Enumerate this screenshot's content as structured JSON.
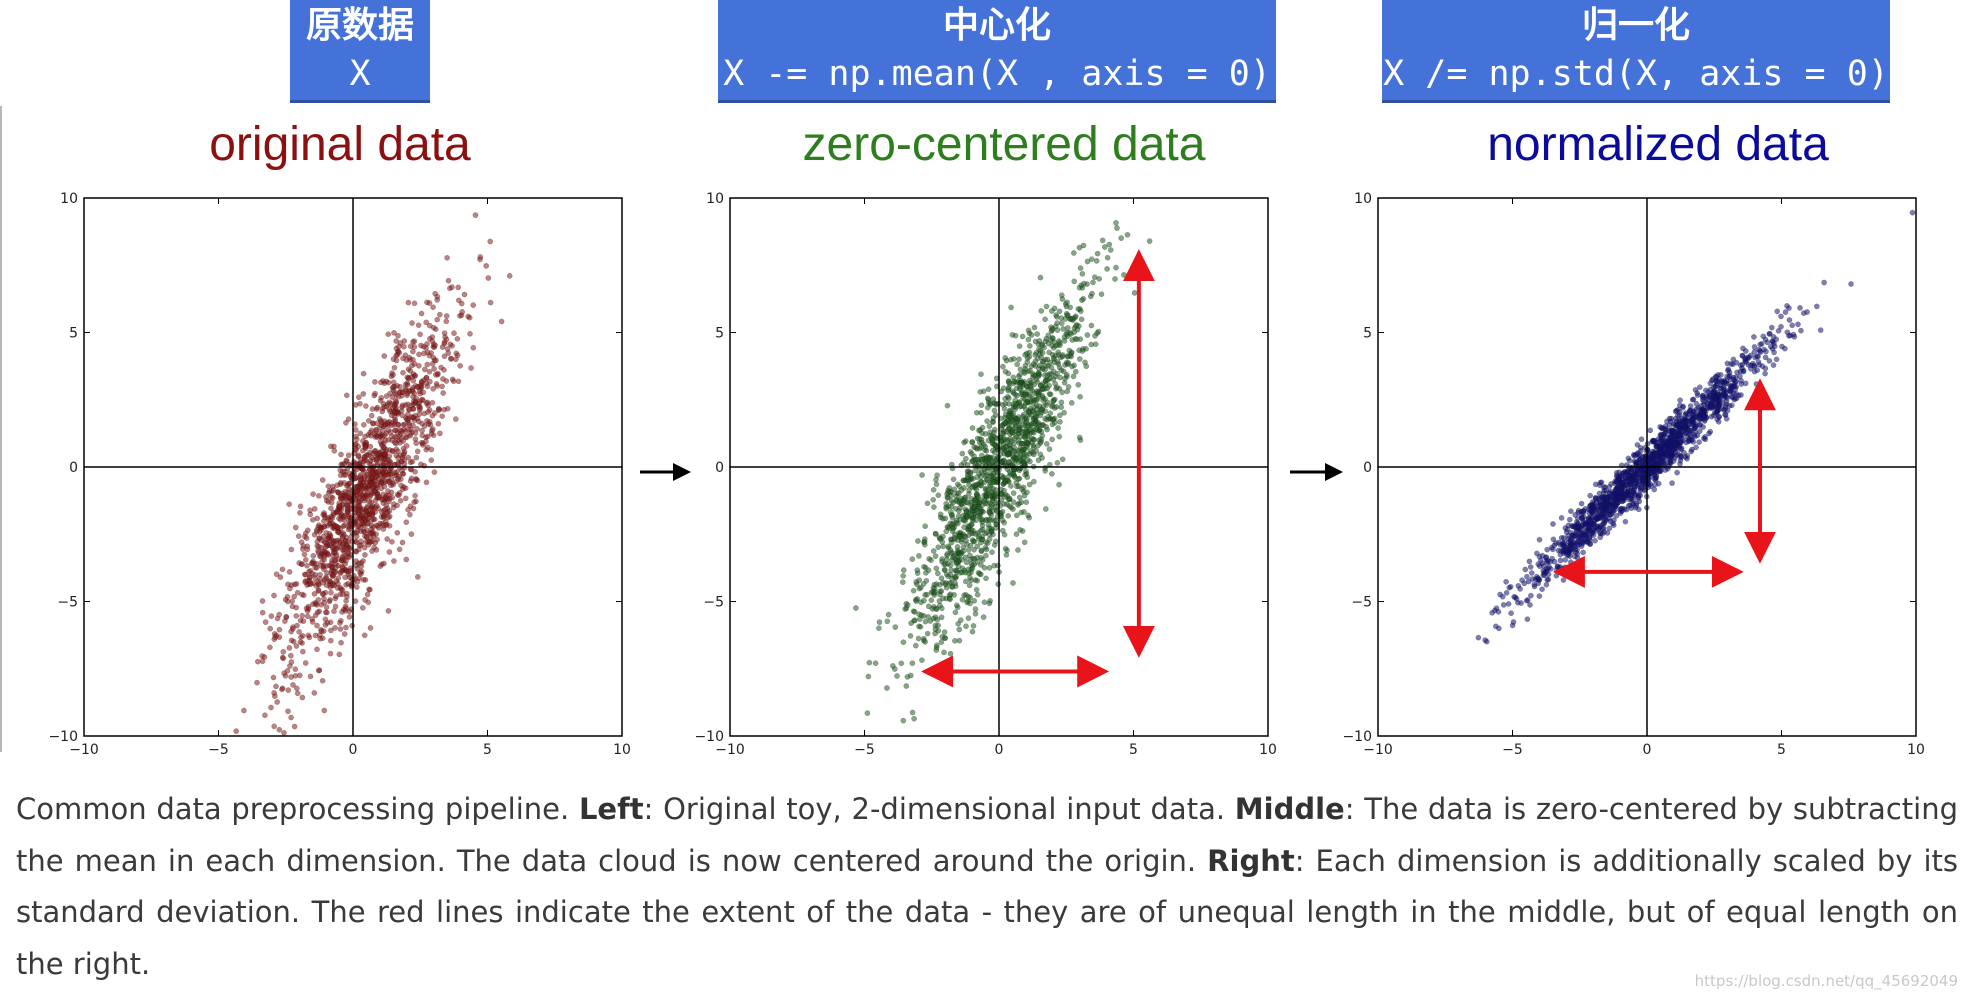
{
  "banners": [
    {
      "zh": "原数据",
      "code": "X"
    },
    {
      "zh": "中心化",
      "code": "X -= np.mean(X , axis = 0)"
    },
    {
      "zh": "归一化",
      "code": "X /= np.std(X, axis = 0)"
    }
  ],
  "chart_data": [
    {
      "type": "scatter",
      "title": "original data",
      "title_color": "#8b1010",
      "point_color": "#8b1a1a",
      "xlim": [
        -10,
        10
      ],
      "ylim": [
        -10,
        10
      ],
      "xticks": [
        "−10",
        "−5",
        "0",
        "5",
        "10"
      ],
      "yticks": [
        "10",
        "5",
        "0",
        "−5",
        "−10"
      ],
      "grid": false,
      "cloud": {
        "center": [
          0.5,
          -1.0
        ],
        "slope": 2.2,
        "spread_along": 1.6,
        "spread_across": 0.75,
        "n": 1500
      },
      "extent_arrows": []
    },
    {
      "type": "scatter",
      "title": "zero-centered data",
      "title_color": "#2e7d1e",
      "point_color": "#1f5c1f",
      "xlim": [
        -10,
        10
      ],
      "ylim": [
        -10,
        10
      ],
      "xticks": [
        "−10",
        "−5",
        "0",
        "5",
        "10"
      ],
      "yticks": [
        "10",
        "5",
        "0",
        "−5",
        "−10"
      ],
      "grid": false,
      "cloud": {
        "center": [
          0.0,
          0.0
        ],
        "slope": 2.2,
        "spread_along": 1.6,
        "spread_across": 0.75,
        "n": 1500
      },
      "extent_arrows": [
        {
          "orientation": "horizontal",
          "from": [
            -2.6,
            -7.6
          ],
          "to": [
            3.8,
            -7.6
          ]
        },
        {
          "orientation": "vertical",
          "from": [
            5.2,
            7.8
          ],
          "to": [
            5.2,
            -6.8
          ]
        }
      ]
    },
    {
      "type": "scatter",
      "title": "normalized data",
      "title_color": "#0a0a9c",
      "point_color": "#10107a",
      "xlim": [
        -10,
        10
      ],
      "ylim": [
        -10,
        10
      ],
      "xticks": [
        "−10",
        "−5",
        "0",
        "5",
        "10"
      ],
      "yticks": [
        "10",
        "5",
        "0",
        "−5",
        "−10"
      ],
      "grid": false,
      "cloud": {
        "center": [
          0.0,
          0.0
        ],
        "slope": 1.0,
        "spread_along": 1.45,
        "spread_across": 0.32,
        "n": 1500
      },
      "extent_arrows": [
        {
          "orientation": "horizontal",
          "from": [
            -3.2,
            -3.9
          ],
          "to": [
            3.3,
            -3.9
          ]
        },
        {
          "orientation": "vertical",
          "from": [
            4.2,
            3.0
          ],
          "to": [
            4.2,
            -3.3
          ]
        }
      ]
    }
  ],
  "caption": {
    "s1": "Common data preprocessing pipeline. ",
    "b1": "Left",
    "s2": ": Original toy, 2-dimensional input data. ",
    "b2": "Middle",
    "s3": ": The data is zero-centered by subtracting the mean in each dimension. The data cloud is now centered around the origin. ",
    "b3": "Right",
    "s4": ": Each dimension is additionally scaled by its standard deviation. The red lines indicate the extent of the data - they are of unequal length in the middle, but of equal length on the right."
  },
  "watermark": "https://blog.csdn.net/qq_45692049"
}
